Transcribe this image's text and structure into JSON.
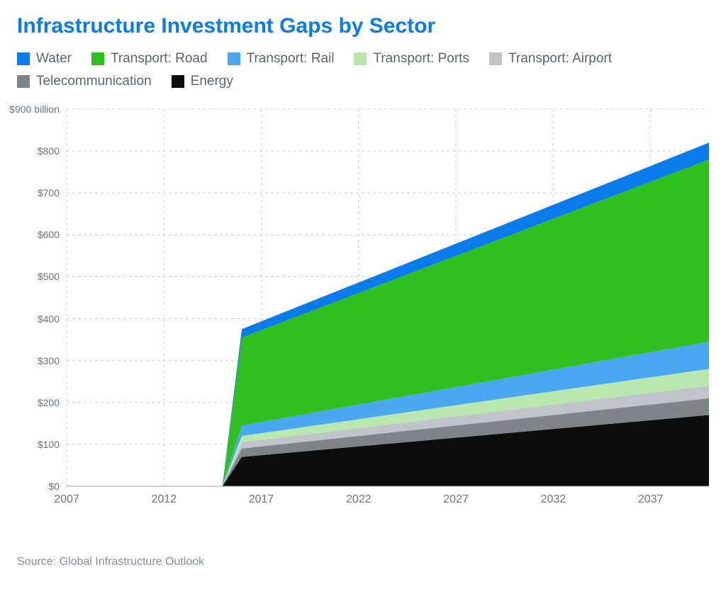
{
  "title": "Infrastructure Investment Gaps by Sector",
  "title_color": "#0a7bea",
  "source": "Source: Global Infrastructure Outlook",
  "legend": [
    {
      "label": "Water",
      "color": "#0a7bea"
    },
    {
      "label": "Transport: Road",
      "color": "#2fbf1f"
    },
    {
      "label": "Transport: Rail",
      "color": "#4aa8f0"
    },
    {
      "label": "Transport: Ports",
      "color": "#b9e8ae"
    },
    {
      "label": "Transport: Airport",
      "color": "#c0c4c8"
    },
    {
      "label": "Telecommunication",
      "color": "#7f8488"
    },
    {
      "label": "Energy",
      "color": "#0d0d0d"
    }
  ],
  "chart": {
    "type": "area-stacked",
    "background_color": "#ffffff",
    "grid_color": "#d0d4d8",
    "grid_dash": "4,4",
    "axis_color": "#9aa0a6",
    "label_color": "#6b757e",
    "label_fontsize": 14,
    "xlabel_fontsize": 16,
    "x": {
      "min": 2007,
      "max": 2040,
      "ticks": [
        2007,
        2012,
        2017,
        2022,
        2027,
        2032,
        2037
      ]
    },
    "y": {
      "min": 0,
      "max": 900,
      "ticks": [
        0,
        100,
        200,
        300,
        400,
        500,
        600,
        700,
        800,
        900
      ],
      "tick_labels": [
        "$0",
        "$100",
        "$200",
        "$300",
        "$400",
        "$500",
        "$600",
        "$700",
        "$800",
        "$900 billion"
      ]
    },
    "years": [
      2007,
      2015,
      2016,
      2040
    ],
    "series": [
      {
        "name": "Energy",
        "color": "#0d0d0d",
        "values": [
          0,
          0,
          70,
          170
        ]
      },
      {
        "name": "Telecommunication",
        "color": "#7f8488",
        "values": [
          0,
          0,
          20,
          40
        ]
      },
      {
        "name": "Transport: Airport",
        "color": "#c0c4c8",
        "values": [
          0,
          0,
          15,
          30
        ]
      },
      {
        "name": "Transport: Ports",
        "color": "#b9e8ae",
        "values": [
          0,
          0,
          15,
          40
        ]
      },
      {
        "name": "Transport: Rail",
        "color": "#4aa8f0",
        "values": [
          0,
          0,
          25,
          65
        ]
      },
      {
        "name": "Transport: Road",
        "color": "#2fbf1f",
        "values": [
          0,
          0,
          210,
          435
        ]
      },
      {
        "name": "Water",
        "color": "#0a7bea",
        "values": [
          0,
          0,
          20,
          40
        ]
      }
    ]
  }
}
